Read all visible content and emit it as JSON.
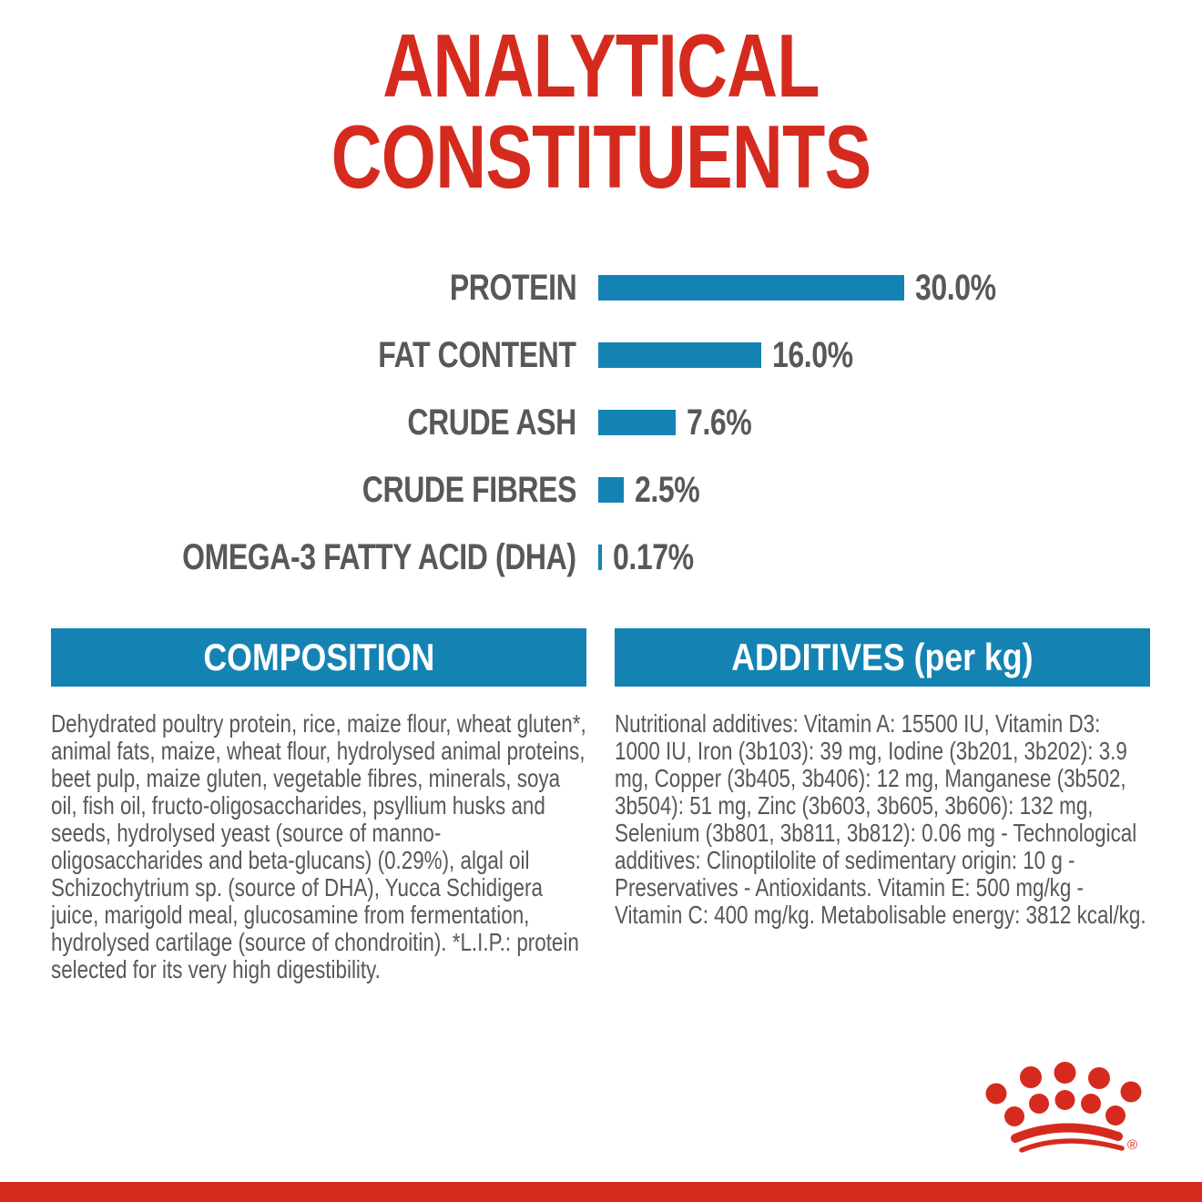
{
  "panel": {
    "title_line1": "ANALYTICAL",
    "title_line2": "CONSTITUENTS"
  },
  "chart_data": {
    "type": "bar",
    "orientation": "horizontal",
    "categories": [
      "PROTEIN",
      "FAT CONTENT",
      "CRUDE ASH",
      "CRUDE FIBRES",
      "OMEGA-3 FATTY ACID (DHA)"
    ],
    "values": [
      30.0,
      16.0,
      7.6,
      2.5,
      0.17
    ],
    "value_labels": [
      "30.0%",
      "16.0%",
      "7.6%",
      "2.5%",
      "0.17%"
    ],
    "unit": "%",
    "xlim": [
      0,
      30
    ],
    "grid": false,
    "legend": false,
    "bar_color": "#1483b3",
    "label_color": "#58585a"
  },
  "composition": {
    "header": "COMPOSITION",
    "body": "Dehydrated poultry protein, rice, maize flour, wheat gluten*, animal fats, maize, wheat flour, hydrolysed animal proteins, beet pulp, maize gluten, vegetable fibres, minerals, soya oil, fish oil, fructo-oligosaccharides, psyllium husks and seeds, hydrolysed yeast (source of manno-oligosaccharides and beta-glucans) (0.29%), algal oil Schizochytrium sp. (source of DHA), Yucca Schidigera juice, marigold meal, glucosamine from fermentation, hydrolysed cartilage (source of chondroitin). *L.I.P.: protein selected for its very high digestibility."
  },
  "additives": {
    "header": "ADDITIVES (per kg)",
    "body": "Nutritional additives: Vitamin A: 15500 IU, Vitamin D3: 1000 IU, Iron (3b103): 39 mg, Iodine (3b201, 3b202): 3.9 mg, Copper (3b405, 3b406): 12 mg, Manganese (3b502, 3b504): 51 mg, Zinc (3b603, 3b605, 3b606): 132 mg, Selenium (3b801, 3b811, 3b812): 0.06 mg - Technological additives: Clinoptilolite of sedimentary origin: 10 g - Preservatives - Antioxidants. Vitamin E: 500 mg/kg - Vitamin C: 400 mg/kg. Metabolisable energy: 3812 kcal/kg."
  },
  "branding": {
    "logo": "royal-canin-crown",
    "registered_mark": "®"
  },
  "colors": {
    "brand_red": "#d52b1e",
    "brand_blue": "#1483b3",
    "text_gray": "#58585a",
    "background": "#ffffff"
  }
}
